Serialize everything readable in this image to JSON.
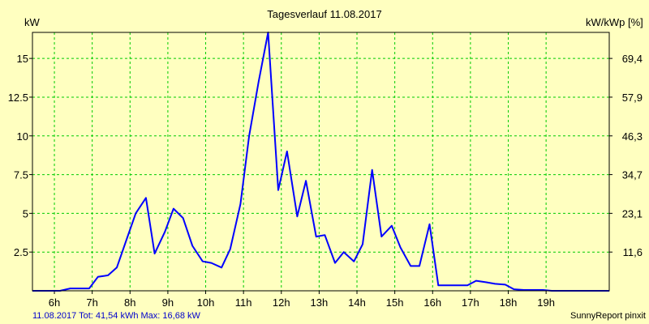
{
  "chart_data": {
    "type": "line",
    "title": "Tagesverlauf 11.08.2017",
    "ylabel": "kW",
    "ylabel_right": "kW/kWp [%]",
    "x_unit": "hours",
    "xlim": [
      5.42,
      20.67
    ],
    "x_ticks": [
      6,
      7,
      8,
      9,
      10,
      11,
      12,
      13,
      14,
      15,
      16,
      17,
      18,
      19
    ],
    "x_tick_labels": [
      "6h",
      "7h",
      "8h",
      "9h",
      "10h",
      "11h",
      "12h",
      "13h",
      "14h",
      "15h",
      "16h",
      "17h",
      "18h",
      "19h"
    ],
    "ylim": [
      0,
      16.68
    ],
    "y_ticks": [
      2.5,
      5,
      7.5,
      10,
      12.5,
      15
    ],
    "y_tick_labels": [
      "2.5",
      "5",
      "7.5",
      "10",
      "12.5",
      "15"
    ],
    "y2_ticks": [
      11.6,
      23.1,
      34.7,
      46.3,
      57.9,
      69.4
    ],
    "y2_tick_labels": [
      "11,6",
      "23,1",
      "34,7",
      "46,3",
      "57,9",
      "69,4"
    ],
    "grid": true,
    "series": [
      {
        "color": "#0000ff",
        "x": [
          5.42,
          6.15,
          6.42,
          6.92,
          7.15,
          7.42,
          7.65,
          7.92,
          8.15,
          8.42,
          8.65,
          8.92,
          9.15,
          9.4,
          9.65,
          9.92,
          10.15,
          10.42,
          10.65,
          10.92,
          11.15,
          11.4,
          11.65,
          11.92,
          12.15,
          12.42,
          12.65,
          12.92,
          13.15,
          13.42,
          13.65,
          13.92,
          14.15,
          14.4,
          14.65,
          14.92,
          15.15,
          15.42,
          15.65,
          15.92,
          16.15,
          16.42,
          16.65,
          16.92,
          17.15,
          17.42,
          17.65,
          17.92,
          18.15,
          18.42,
          18.65,
          18.92,
          19.15,
          19.42,
          19.65,
          19.92,
          20.15,
          20.42,
          20.67
        ],
        "values": [
          0,
          0,
          0.15,
          0.15,
          0.9,
          1.0,
          1.5,
          3.4,
          5.0,
          6.0,
          2.4,
          3.8,
          5.3,
          4.7,
          2.9,
          1.9,
          1.8,
          1.5,
          2.7,
          5.6,
          10.0,
          13.5,
          16.68,
          6.5,
          9.0,
          4.8,
          7.1,
          3.5,
          3.6,
          1.8,
          2.5,
          1.9,
          3.0,
          7.8,
          3.5,
          4.2,
          2.8,
          1.6,
          1.6,
          4.3,
          0.35,
          0.35,
          0.35,
          0.35,
          0.65,
          0.55,
          0.45,
          0.4,
          0.1,
          0.05,
          0.05,
          0.05,
          0,
          0,
          0,
          0,
          0,
          0,
          0
        ]
      }
    ]
  },
  "footer": {
    "summary": "11.08.2017 Tot: 41,54 kWh Max: 16,68 kW",
    "credit": "SunnyReport pinxit"
  }
}
